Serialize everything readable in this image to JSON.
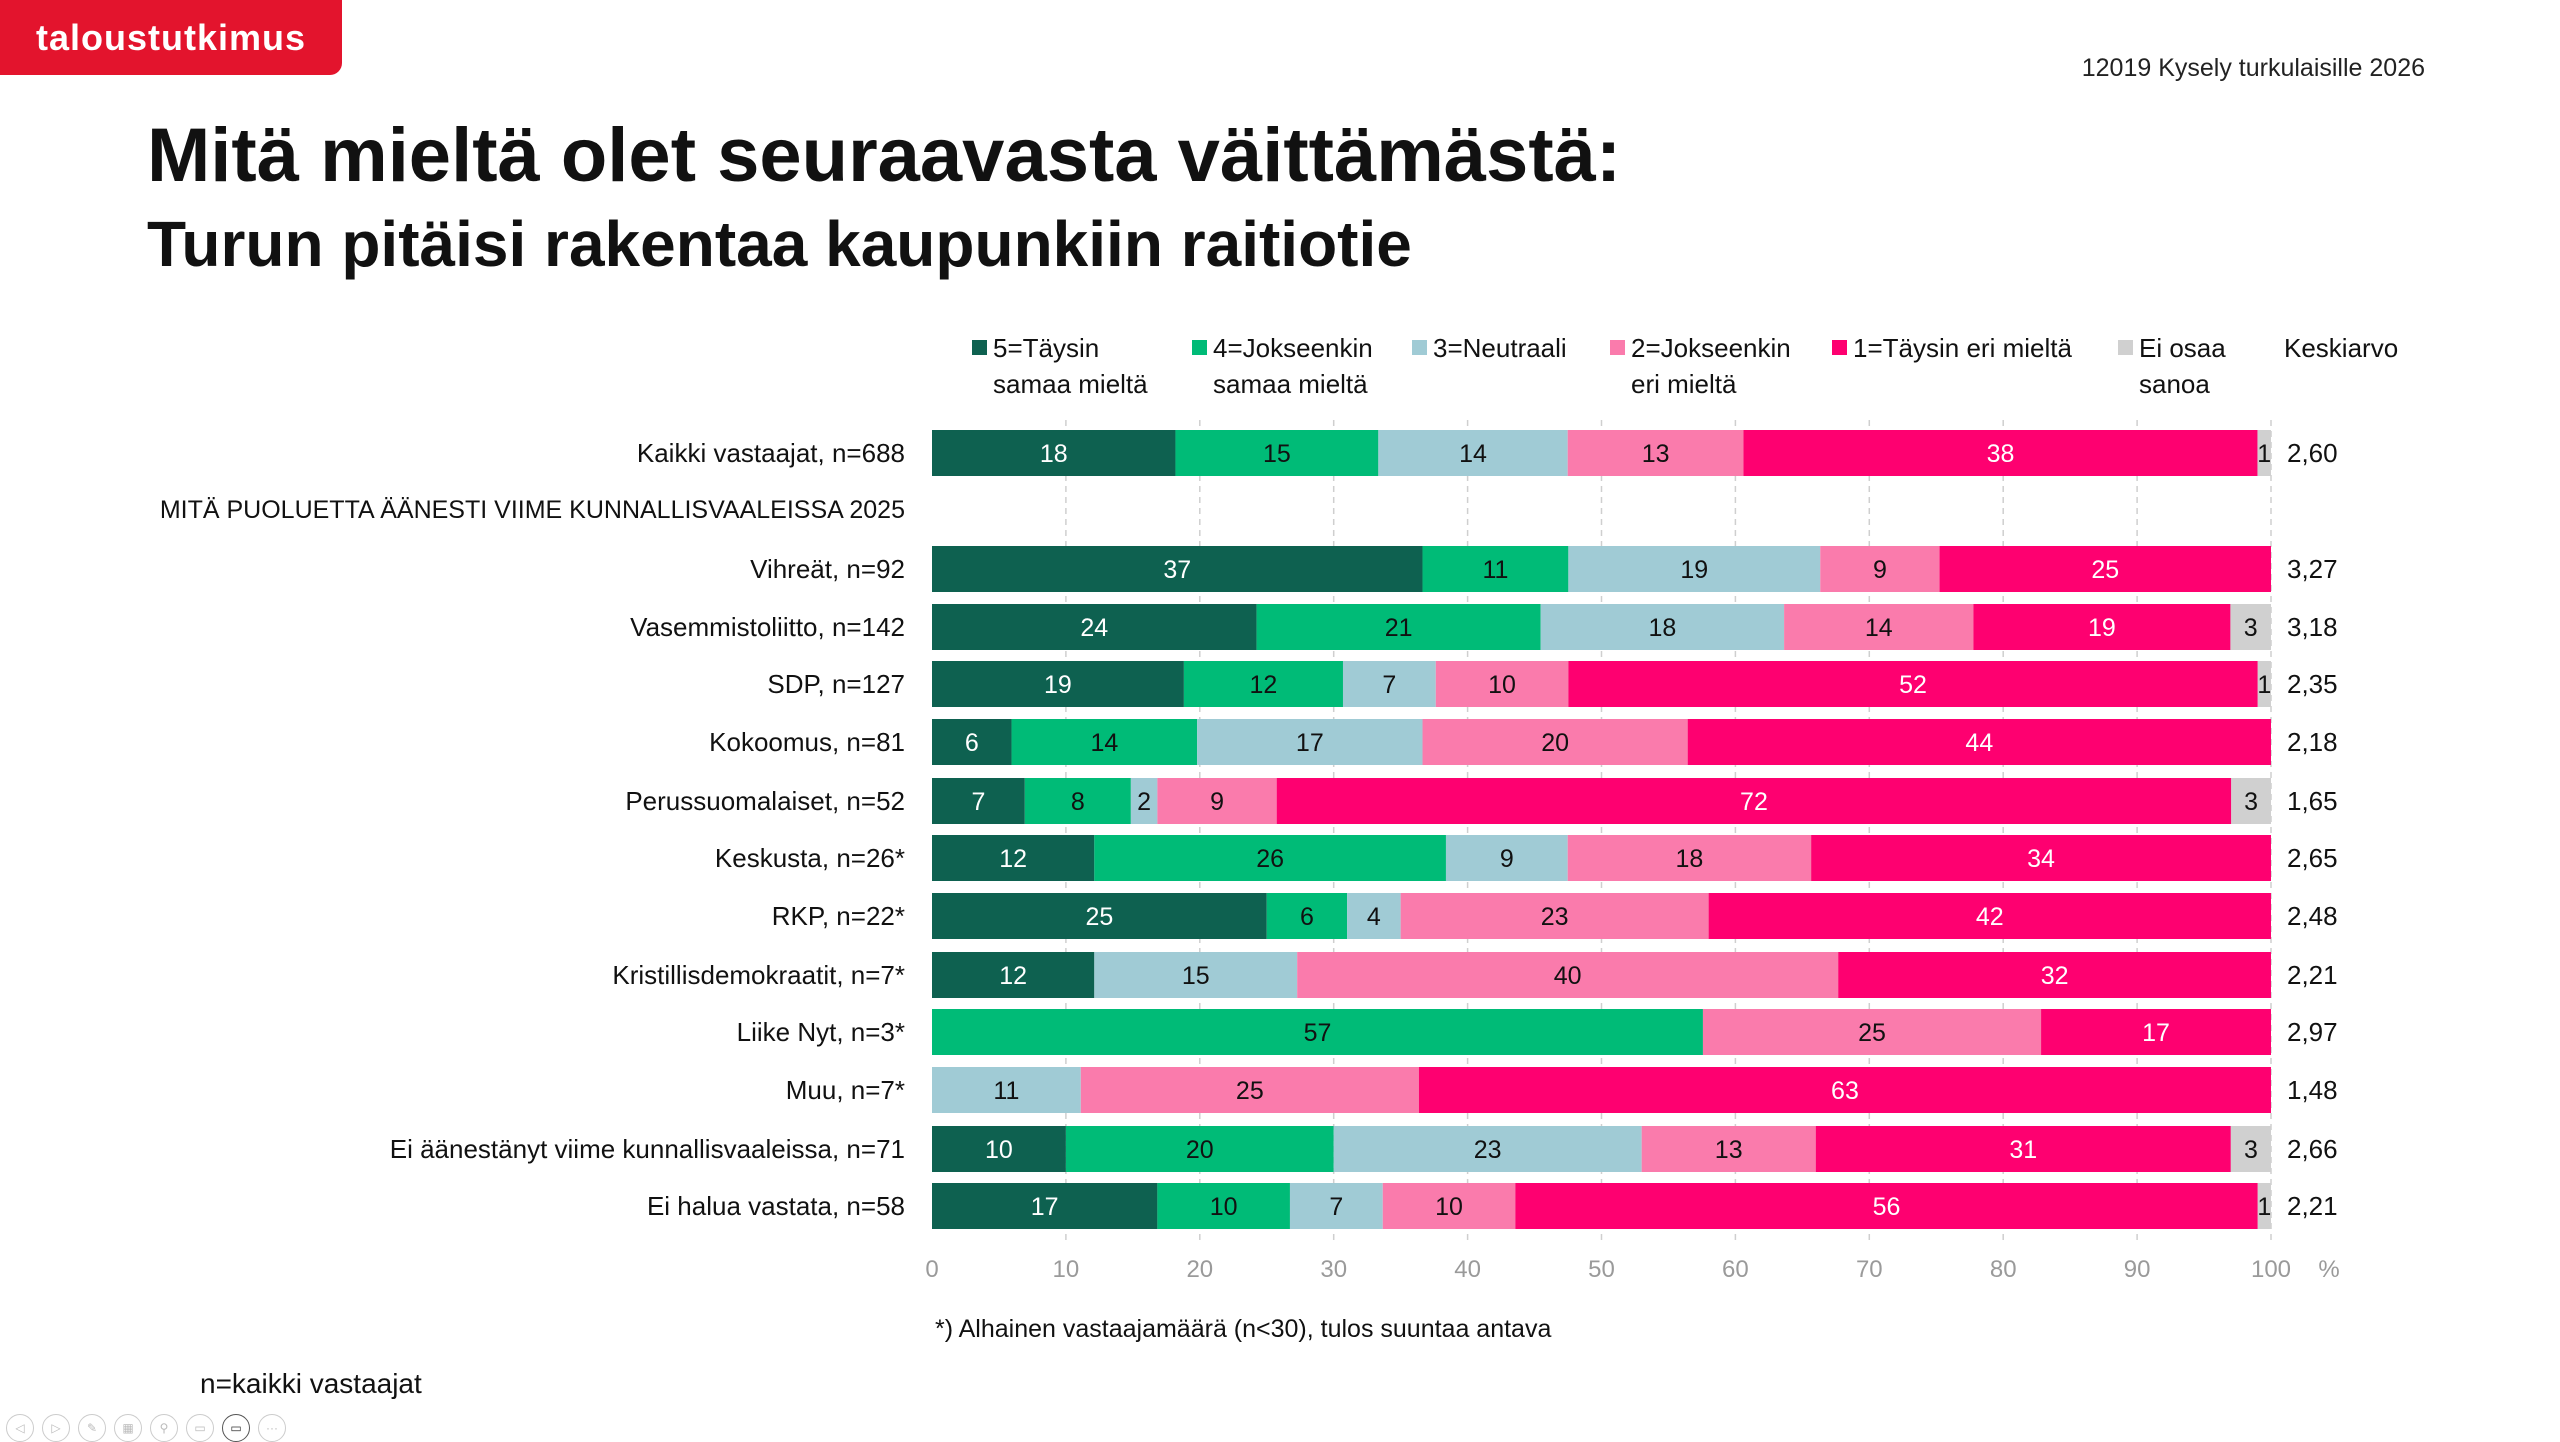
{
  "header": {
    "logo": "taloustutkimus",
    "survey": "12019 Kysely turkulaisille 2026",
    "title": "Mitä mieltä olet seuraavasta väittämästä:",
    "subtitle": "Turun pitäisi rakentaa kaupunkiin raitiotie"
  },
  "chart_data": {
    "type": "bar",
    "orientation": "horizontal-stacked-100",
    "series": [
      {
        "name": "5=Täysin samaa mieltä",
        "legend_lines": [
          "5=Täysin",
          "samaa mieltä"
        ],
        "color": "#0e6150",
        "label_color": "#ffffff"
      },
      {
        "name": "4=Jokseenkin samaa mieltä",
        "legend_lines": [
          "4=Jokseenkin",
          "samaa mieltä"
        ],
        "color": "#00bb77",
        "label_color": "#111111"
      },
      {
        "name": "3=Neutraali",
        "legend_lines": [
          "3=Neutraali",
          ""
        ],
        "color": "#a0cbd5",
        "label_color": "#111111"
      },
      {
        "name": "2=Jokseenkin eri mieltä",
        "legend_lines": [
          "2=Jokseenkin",
          "eri mieltä"
        ],
        "color": "#fa7bac",
        "label_color": "#111111"
      },
      {
        "name": "1=Täysin eri mieltä",
        "legend_lines": [
          "1=Täysin eri mieltä",
          ""
        ],
        "color": "#fe0070",
        "label_color": "#ffffff"
      },
      {
        "name": "Ei osaa sanoa",
        "legend_lines": [
          "Ei osaa",
          "sanoa"
        ],
        "color": "#d0d0d0",
        "label_color": "#111111"
      }
    ],
    "mean_header": "Keskiarvo",
    "section_label": "MITÄ PUOLUETTA ÄÄNESTI VIIME KUNNALLISVAALEISSA 2025",
    "rows": [
      {
        "label": "Kaikki vastaajat, n=688",
        "values": [
          18,
          15,
          14,
          13,
          38,
          1
        ],
        "mean": "2,60"
      },
      {
        "label": "Vihreät, n=92",
        "values": [
          37,
          11,
          19,
          9,
          25,
          null
        ],
        "mean": "3,27"
      },
      {
        "label": "Vasemmistoliitto, n=142",
        "values": [
          24,
          21,
          18,
          14,
          19,
          3
        ],
        "mean": "3,18"
      },
      {
        "label": "SDP, n=127",
        "values": [
          19,
          12,
          7,
          10,
          52,
          1
        ],
        "mean": "2,35"
      },
      {
        "label": "Kokoomus, n=81",
        "values": [
          6,
          14,
          17,
          20,
          44,
          null
        ],
        "mean": "2,18"
      },
      {
        "label": "Perussuomalaiset, n=52",
        "values": [
          7,
          8,
          2,
          9,
          72,
          3
        ],
        "mean": "1,65"
      },
      {
        "label": "Keskusta, n=26*",
        "values": [
          12,
          26,
          9,
          18,
          34,
          null
        ],
        "mean": "2,65"
      },
      {
        "label": "RKP, n=22*",
        "values": [
          25,
          6,
          4,
          23,
          42,
          null
        ],
        "mean": "2,48"
      },
      {
        "label": "Kristillisdemokraatit, n=7*",
        "values": [
          12,
          null,
          15,
          40,
          32,
          null
        ],
        "mean": "2,21"
      },
      {
        "label": "Liike Nyt, n=3*",
        "values": [
          null,
          57,
          null,
          25,
          17,
          null
        ],
        "mean": "2,97"
      },
      {
        "label": "Muu, n=7*",
        "values": [
          null,
          null,
          11,
          25,
          63,
          null
        ],
        "mean": "1,48"
      },
      {
        "label": "Ei äänestänyt viime kunnallisvaaleissa, n=71",
        "values": [
          10,
          20,
          23,
          13,
          31,
          3
        ],
        "mean": "2,66"
      },
      {
        "label": "Ei halua vastata, n=58",
        "values": [
          17,
          10,
          7,
          10,
          56,
          1
        ],
        "mean": "2,21"
      }
    ],
    "xlim": [
      0,
      100
    ],
    "xticks": [
      "0",
      "10",
      "20",
      "30",
      "40",
      "50",
      "60",
      "70",
      "80",
      "90",
      "100"
    ],
    "xunit": "%",
    "grid": true,
    "legend_position": "top",
    "footnote": "*) Alhainen vastaajamäärä (n<30), tulos suuntaa antava",
    "note": "n=kaikki vastaajat"
  }
}
